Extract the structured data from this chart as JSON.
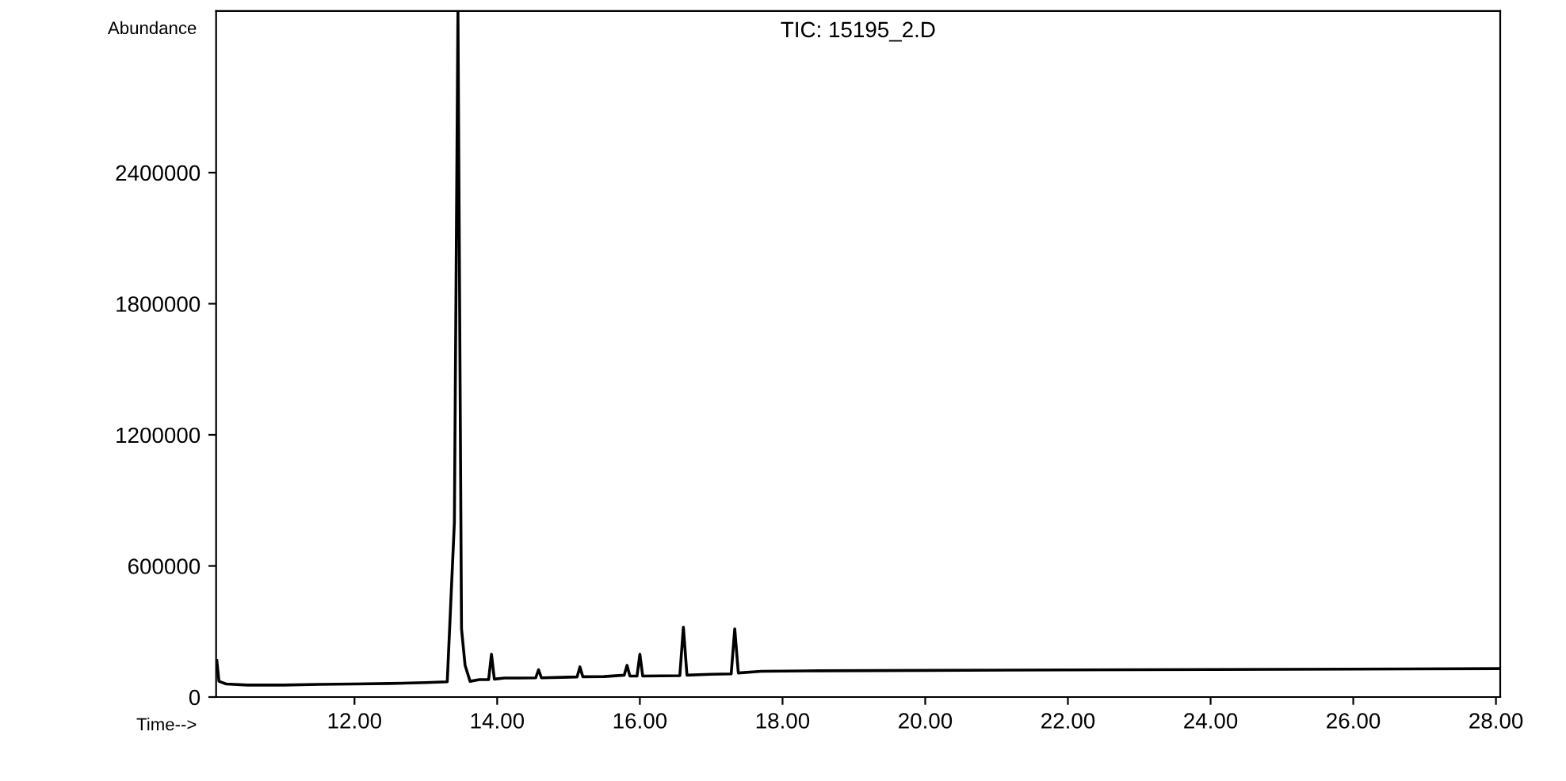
{
  "chart_data": {
    "type": "line",
    "title": "TIC: 15195_2.D",
    "xlabel": "Time-->",
    "ylabel": "Abundance",
    "xlim": [
      10.06,
      28.06
    ],
    "xticks": [
      {
        "value": 12,
        "label": "12.00"
      },
      {
        "value": 14,
        "label": "14.00"
      },
      {
        "value": 16,
        "label": "16.00"
      },
      {
        "value": 18,
        "label": "18.00"
      },
      {
        "value": 20,
        "label": "20.00"
      },
      {
        "value": 22,
        "label": "22.00"
      },
      {
        "value": 24,
        "label": "24.00"
      },
      {
        "value": 26,
        "label": "26.00"
      },
      {
        "value": 28,
        "label": "28.00"
      }
    ],
    "ylim": [
      0,
      3140000
    ],
    "yticks": [
      0,
      600000,
      1200000,
      1800000,
      2400000
    ],
    "grid": false,
    "marker": "none",
    "line_style": "solid",
    "series": [
      {
        "color": "#000000",
        "x": [
          10.07,
          10.1,
          10.2,
          10.5,
          11.0,
          11.5,
          12.0,
          12.5,
          13.0,
          13.3,
          13.4,
          13.45,
          13.5,
          13.55,
          13.62,
          13.75,
          13.88,
          13.92,
          13.96,
          14.1,
          14.3,
          14.54,
          14.58,
          14.62,
          14.9,
          15.12,
          15.16,
          15.2,
          15.5,
          15.78,
          15.82,
          15.86,
          15.96,
          16.0,
          16.04,
          16.3,
          16.56,
          16.61,
          16.66,
          17.0,
          17.28,
          17.33,
          17.38,
          17.7,
          18.5,
          20.0,
          22.0,
          24.0,
          26.0,
          28.06
        ],
        "values": [
          167000,
          72000,
          60000,
          55000,
          55000,
          58000,
          60000,
          62000,
          66000,
          70000,
          800000,
          3140000,
          312000,
          145000,
          72000,
          80000,
          80000,
          196000,
          82000,
          87000,
          87000,
          88000,
          125000,
          88000,
          90000,
          92000,
          138000,
          93000,
          94000,
          100000,
          145000,
          96000,
          96000,
          196000,
          96000,
          97000,
          98000,
          320000,
          100000,
          104000,
          106000,
          312000,
          110000,
          118000,
          120000,
          122000,
          124000,
          126000,
          128000,
          130000
        ]
      }
    ]
  }
}
